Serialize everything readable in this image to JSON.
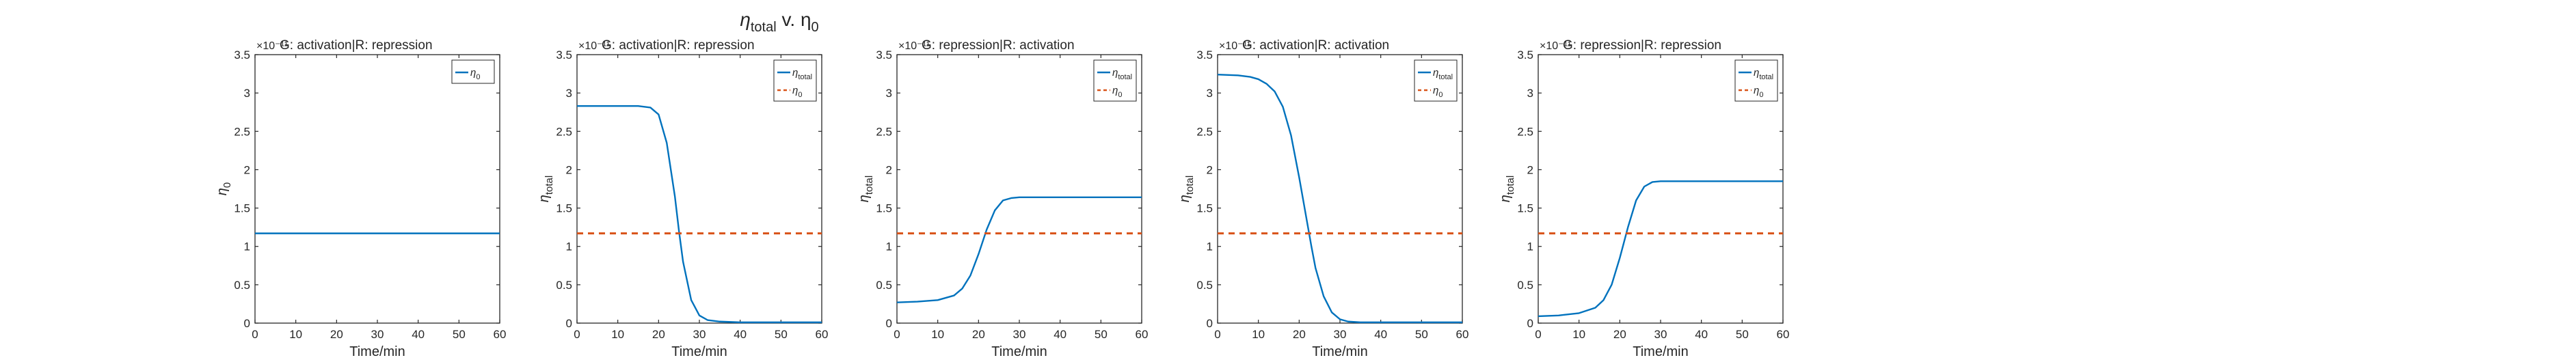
{
  "figure": {
    "suptitle_main": "η",
    "suptitle_sub1": "total",
    "suptitle_mid": " v. η",
    "suptitle_sub2": "0"
  },
  "colors": {
    "total": "#0072BD",
    "zero": "#D95319",
    "axis": "#262626"
  },
  "chart_data": [
    {
      "type": "line",
      "title": "G: activation|R: repression",
      "exponent": "×10⁻¹¹",
      "xlabel": "Time/min",
      "ylabel": "η",
      "ylabel_sub": "0",
      "xlim": [
        0,
        60
      ],
      "ylim": [
        0,
        3.5
      ],
      "xticks": [
        "0",
        "10",
        "20",
        "30",
        "40",
        "50",
        "60"
      ],
      "yticks": [
        "0",
        "0.5",
        "1",
        "1.5",
        "2",
        "2.5",
        "3",
        "3.5"
      ],
      "legend_position": "top-right",
      "series": [
        {
          "name": "η",
          "name_sub": "0",
          "style": "solid",
          "color_key": "zero_as_solid",
          "x": [
            0,
            60
          ],
          "y": [
            1.17,
            1.17
          ]
        }
      ]
    },
    {
      "type": "line",
      "title": "G: activation|R: repression",
      "exponent": "×10⁻¹¹",
      "xlabel": "Time/min",
      "ylabel": "η",
      "ylabel_sub": "total",
      "xlim": [
        0,
        60
      ],
      "ylim": [
        0,
        3.5
      ],
      "xticks": [
        "0",
        "10",
        "20",
        "30",
        "40",
        "50",
        "60"
      ],
      "yticks": [
        "0",
        "0.5",
        "1",
        "1.5",
        "2",
        "2.5",
        "3",
        "3.5"
      ],
      "legend_position": "top-right",
      "series": [
        {
          "name": "η",
          "name_sub": "total",
          "style": "solid",
          "color_key": "total",
          "x": [
            0,
            5,
            10,
            15,
            18,
            20,
            22,
            24,
            25,
            26,
            28,
            30,
            32,
            35,
            40,
            50,
            60
          ],
          "y": [
            2.83,
            2.83,
            2.83,
            2.83,
            2.81,
            2.72,
            2.35,
            1.65,
            1.2,
            0.8,
            0.3,
            0.1,
            0.04,
            0.02,
            0.01,
            0.01,
            0.01
          ]
        },
        {
          "name": "η",
          "name_sub": "0",
          "style": "dashed",
          "color_key": "zero",
          "x": [
            0,
            60
          ],
          "y": [
            1.17,
            1.17
          ]
        }
      ]
    },
    {
      "type": "line",
      "title": "G: repression|R: activation",
      "exponent": "×10⁻¹¹",
      "xlabel": "Time/min",
      "ylabel": "η",
      "ylabel_sub": "total",
      "xlim": [
        0,
        60
      ],
      "ylim": [
        0,
        3.5
      ],
      "xticks": [
        "0",
        "10",
        "20",
        "30",
        "40",
        "50",
        "60"
      ],
      "yticks": [
        "0",
        "0.5",
        "1",
        "1.5",
        "2",
        "2.5",
        "3",
        "3.5"
      ],
      "legend_position": "top-right",
      "series": [
        {
          "name": "η",
          "name_sub": "total",
          "style": "solid",
          "color_key": "total",
          "x": [
            0,
            5,
            10,
            14,
            16,
            18,
            20,
            22,
            24,
            26,
            28,
            30,
            35,
            40,
            50,
            60
          ],
          "y": [
            0.27,
            0.28,
            0.3,
            0.36,
            0.45,
            0.62,
            0.9,
            1.22,
            1.47,
            1.6,
            1.63,
            1.64,
            1.64,
            1.64,
            1.64,
            1.64
          ]
        },
        {
          "name": "η",
          "name_sub": "0",
          "style": "dashed",
          "color_key": "zero",
          "x": [
            0,
            60
          ],
          "y": [
            1.17,
            1.17
          ]
        }
      ]
    },
    {
      "type": "line",
      "title": "G: activation|R: activation",
      "exponent": "×10⁻¹¹",
      "xlabel": "Time/min",
      "ylabel": "η",
      "ylabel_sub": "total",
      "xlim": [
        0,
        60
      ],
      "ylim": [
        0,
        3.5
      ],
      "xticks": [
        "0",
        "10",
        "20",
        "30",
        "40",
        "50",
        "60"
      ],
      "yticks": [
        "0",
        "0.5",
        "1",
        "1.5",
        "2",
        "2.5",
        "3",
        "3.5"
      ],
      "legend_position": "top-right",
      "series": [
        {
          "name": "η",
          "name_sub": "total",
          "style": "solid",
          "color_key": "total",
          "x": [
            0,
            5,
            8,
            10,
            12,
            14,
            16,
            18,
            20,
            22,
            23,
            24,
            26,
            28,
            30,
            32,
            35,
            40,
            50,
            60
          ],
          "y": [
            3.24,
            3.23,
            3.21,
            3.18,
            3.12,
            3.02,
            2.82,
            2.45,
            1.9,
            1.3,
            1.0,
            0.72,
            0.35,
            0.14,
            0.05,
            0.02,
            0.01,
            0.01,
            0.01,
            0.01
          ]
        },
        {
          "name": "η",
          "name_sub": "0",
          "style": "dashed",
          "color_key": "zero",
          "x": [
            0,
            60
          ],
          "y": [
            1.17,
            1.17
          ]
        }
      ]
    },
    {
      "type": "line",
      "title": "G: repression|R: repression",
      "exponent": "×10⁻¹¹",
      "xlabel": "Time/min",
      "ylabel": "η",
      "ylabel_sub": "total",
      "xlim": [
        0,
        60
      ],
      "ylim": [
        0,
        3.5
      ],
      "xticks": [
        "0",
        "10",
        "20",
        "30",
        "40",
        "50",
        "60"
      ],
      "yticks": [
        "0",
        "0.5",
        "1",
        "1.5",
        "2",
        "2.5",
        "3",
        "3.5"
      ],
      "legend_position": "top-right",
      "series": [
        {
          "name": "η",
          "name_sub": "total",
          "style": "solid",
          "color_key": "total",
          "x": [
            0,
            5,
            10,
            14,
            16,
            18,
            20,
            22,
            24,
            26,
            28,
            30,
            35,
            40,
            50,
            60
          ],
          "y": [
            0.09,
            0.1,
            0.13,
            0.2,
            0.3,
            0.5,
            0.85,
            1.25,
            1.6,
            1.78,
            1.84,
            1.85,
            1.85,
            1.85,
            1.85,
            1.85
          ]
        },
        {
          "name": "η",
          "name_sub": "0",
          "style": "dashed",
          "color_key": "zero",
          "x": [
            0,
            60
          ],
          "y": [
            1.17,
            1.17
          ]
        }
      ]
    }
  ]
}
